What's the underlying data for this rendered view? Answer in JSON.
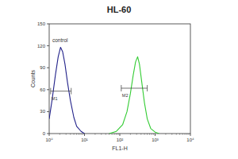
{
  "chart_data": {
    "type": "line",
    "title": "HL-60",
    "x_label": "FL1-H",
    "y_label": "Counts",
    "log": "x",
    "grid": false,
    "xlim": [
      1,
      10000
    ],
    "xticks": [
      {
        "value": 1,
        "label": "10⁰"
      },
      {
        "value": 10,
        "label": "10¹"
      },
      {
        "value": 100,
        "label": "10²"
      },
      {
        "value": 1000,
        "label": "10³"
      },
      {
        "value": 10000,
        "label": "10⁴"
      }
    ],
    "ylim": [
      0,
      150
    ],
    "yticks": [
      0,
      30,
      60,
      90,
      120,
      150
    ],
    "series": [
      {
        "name": "control",
        "color": "#22228a",
        "x": [
          1,
          1.2,
          1.5,
          1.8,
          2.1,
          2.4,
          2.8,
          3.3,
          4,
          5,
          6,
          8,
          10
        ],
        "values": [
          20,
          45,
          80,
          105,
          118,
          112,
          95,
          70,
          45,
          22,
          10,
          3,
          0
        ]
      },
      {
        "color": "#33cc33",
        "x": [
          50,
          80,
          120,
          160,
          200,
          240,
          280,
          320,
          360,
          420,
          500,
          600,
          750,
          1000,
          1300
        ],
        "values": [
          0,
          3,
          12,
          30,
          55,
          80,
          98,
          105,
          95,
          70,
          42,
          20,
          7,
          2,
          0
        ]
      }
    ],
    "gates": [
      {
        "label": "M1",
        "x": [
          1.1,
          4.2
        ],
        "y": 58
      },
      {
        "label": "M2",
        "x": [
          110,
          600
        ],
        "y": 62
      }
    ]
  }
}
